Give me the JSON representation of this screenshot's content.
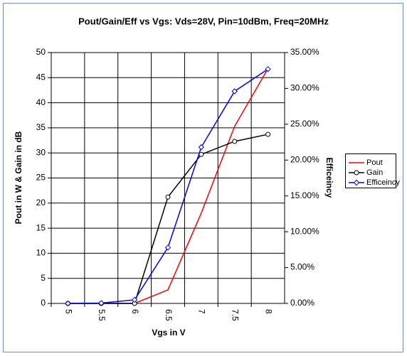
{
  "chart_data": {
    "type": "line",
    "title": "Pout/Gain/Eff vs Vgs: Vds=28V, Pin=10dBm, Freq=20MHz",
    "x_label": "Vgs in V",
    "y_label": "Pout in W & Gain in dB",
    "y2_label": "Efficeincy",
    "categories": [
      "5",
      "5.5",
      "6",
      "6.5",
      "7",
      "7.5",
      "8"
    ],
    "series": [
      {
        "name": "Pout",
        "color": "#ff0000",
        "values": [
          0,
          0,
          0,
          2.7,
          18,
          35.3,
          46.8
        ]
      },
      {
        "name": "Gain",
        "color": "#000000",
        "marker": "circle",
        "values": [
          0,
          0,
          0,
          21.2,
          29.7,
          32.3,
          33.7
        ]
      },
      {
        "name": "Efficeincy",
        "color": "#0000ff",
        "marker": "diamond",
        "axis": "y2",
        "values": [
          0,
          0.05,
          0.5,
          7.8,
          21.8,
          29.6,
          32.7
        ]
      }
    ],
    "ylim": [
      0,
      50
    ],
    "yticks": [
      0,
      5,
      10,
      15,
      20,
      25,
      30,
      35,
      40,
      45,
      50
    ],
    "y2lim": [
      0,
      35
    ],
    "y2ticks": [
      {
        "value": 0,
        "label": "0.00%"
      },
      {
        "value": 5,
        "label": "5.00%"
      },
      {
        "value": 10,
        "label": "10.00%"
      },
      {
        "value": 15,
        "label": "15.00%"
      },
      {
        "value": 20,
        "label": "20.00%"
      },
      {
        "value": 25,
        "label": "25.00%"
      },
      {
        "value": 30,
        "label": "30.00%"
      },
      {
        "value": 35,
        "label": "35.00%"
      }
    ],
    "grid": true,
    "legend": "right"
  }
}
